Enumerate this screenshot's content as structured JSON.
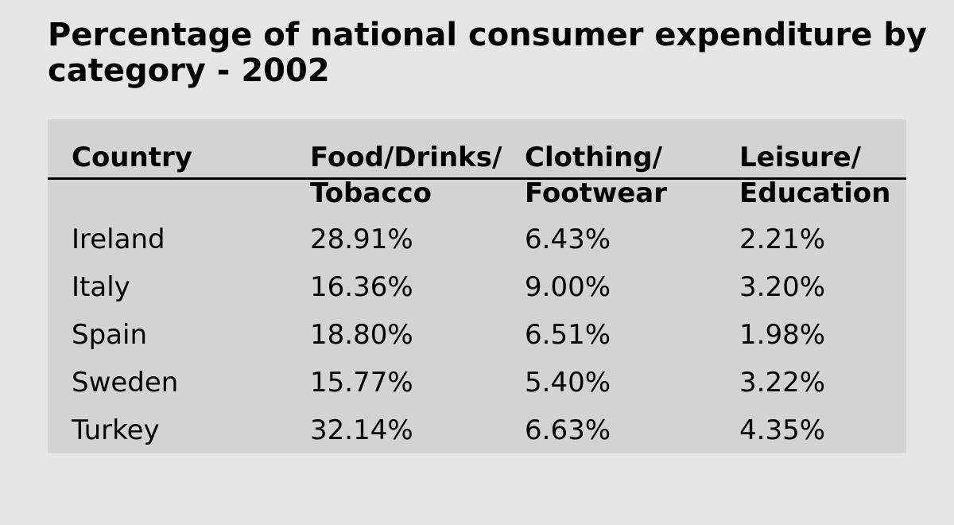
{
  "title": "Percentage of national consumer expenditure by category - 2002",
  "chart_data": {
    "type": "table",
    "title": "Percentage of national consumer expenditure by category - 2002",
    "columns": [
      "Country",
      "Food/Drinks/\nTobacco",
      "Clothing/\nFootwear",
      "Leisure/\nEducation"
    ],
    "rows": [
      [
        "Ireland",
        "28.91%",
        "6.43%",
        "2.21%"
      ],
      [
        "Italy",
        "16.36%",
        "9.00%",
        "3.20%"
      ],
      [
        "Spain",
        "18.80%",
        "6.51%",
        "1.98%"
      ],
      [
        "Sweden",
        "15.77%",
        "5.40%",
        "3.22%"
      ],
      [
        "Turkey",
        "32.14%",
        "6.63%",
        "4.35%"
      ]
    ]
  }
}
